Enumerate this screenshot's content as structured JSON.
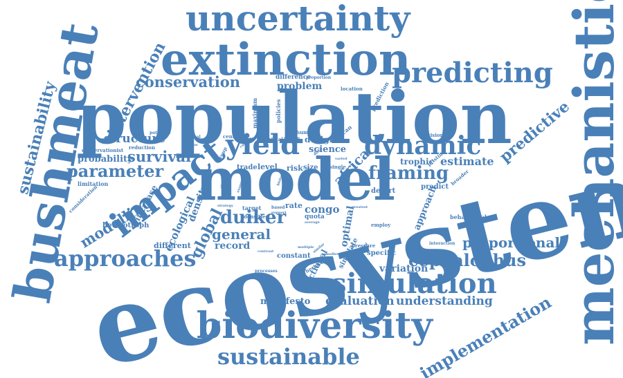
{
  "color": "#4a80b8",
  "words": [
    {
      "text": "ecosystem"
    },
    {
      "text": "population"
    },
    {
      "text": "model"
    },
    {
      "text": "mechanistic"
    },
    {
      "text": "bushmeat"
    },
    {
      "text": "extinction"
    },
    {
      "text": "uncertainty"
    },
    {
      "text": "biodiversity"
    },
    {
      "text": "simulation"
    },
    {
      "text": "impact"
    },
    {
      "text": "predicting"
    },
    {
      "text": "dynamic"
    },
    {
      "text": "yield"
    },
    {
      "text": "approaches"
    },
    {
      "text": "sustainable"
    },
    {
      "text": "implementation"
    },
    {
      "text": "sustainability"
    },
    {
      "text": "intervention"
    },
    {
      "text": "conservation"
    },
    {
      "text": "predictive"
    },
    {
      "text": "parameter"
    },
    {
      "text": "survival"
    },
    {
      "text": "structure"
    },
    {
      "text": "probability"
    },
    {
      "text": "framing"
    },
    {
      "text": "cephalophus"
    },
    {
      "text": "proportional"
    },
    {
      "text": "duiker"
    },
    {
      "text": "global"
    },
    {
      "text": "modelling"
    },
    {
      "text": "general"
    },
    {
      "text": "record"
    },
    {
      "text": "evaluation"
    },
    {
      "text": "understanding"
    },
    {
      "text": "estimate"
    },
    {
      "text": "africa"
    },
    {
      "text": "ecological"
    },
    {
      "text": "variation"
    },
    {
      "text": "manifesto"
    },
    {
      "text": "problem"
    },
    {
      "text": "science"
    },
    {
      "text": "congo"
    },
    {
      "text": "design"
    },
    {
      "text": "trophic"
    },
    {
      "text": "approach"
    },
    {
      "text": "density"
    },
    {
      "text": "optimal"
    },
    {
      "text": "increase"
    },
    {
      "text": "different"
    },
    {
      "text": "heterotroph"
    },
    {
      "text": "functional"
    },
    {
      "text": "simulate"
    },
    {
      "text": "specific"
    },
    {
      "text": "constant"
    },
    {
      "text": "behavioural"
    },
    {
      "text": "predict"
    },
    {
      "text": "desert"
    },
    {
      "text": "level"
    },
    {
      "text": "risk"
    },
    {
      "text": "size"
    },
    {
      "text": "trade"
    },
    {
      "text": "rate"
    },
    {
      "text": "quota"
    },
    {
      "text": "target"
    },
    {
      "text": "difference"
    },
    {
      "text": "maximum"
    },
    {
      "text": "policies"
    },
    {
      "text": "location"
    },
    {
      "text": "prediction"
    },
    {
      "text": "limitation"
    },
    {
      "text": "consideration"
    },
    {
      "text": "reduction"
    },
    {
      "text": "conservationist"
    },
    {
      "text": "potential"
    },
    {
      "text": "minimal"
    },
    {
      "text": "central"
    },
    {
      "text": "animal"
    },
    {
      "text": "human"
    },
    {
      "text": "african"
    },
    {
      "text": "decision"
    },
    {
      "text": "pristine"
    },
    {
      "text": "broader"
    },
    {
      "text": "employ"
    },
    {
      "text": "interaction"
    },
    {
      "text": "pressure"
    },
    {
      "text": "herbivore"
    },
    {
      "text": "processes"
    },
    {
      "text": "densities"
    },
    {
      "text": "single"
    },
    {
      "text": "greatest"
    },
    {
      "text": "proportion"
    },
    {
      "text": "group"
    },
    {
      "text": "system"
    },
    {
      "text": "function"
    },
    {
      "text": "strategy"
    },
    {
      "text": "based"
    },
    {
      "text": "support"
    },
    {
      "text": "average"
    },
    {
      "text": "multiple"
    },
    {
      "text": "contrast"
    },
    {
      "text": "similar"
    },
    {
      "text": "smaller"
    },
    {
      "text": "varied"
    },
    {
      "text": "hunted"
    },
    {
      "text": "revised"
    },
    {
      "text": "data"
    },
    {
      "text": "chapter"
    },
    {
      "text": "examine"
    },
    {
      "text": "current"
    },
    {
      "text": "biology"
    }
  ]
}
